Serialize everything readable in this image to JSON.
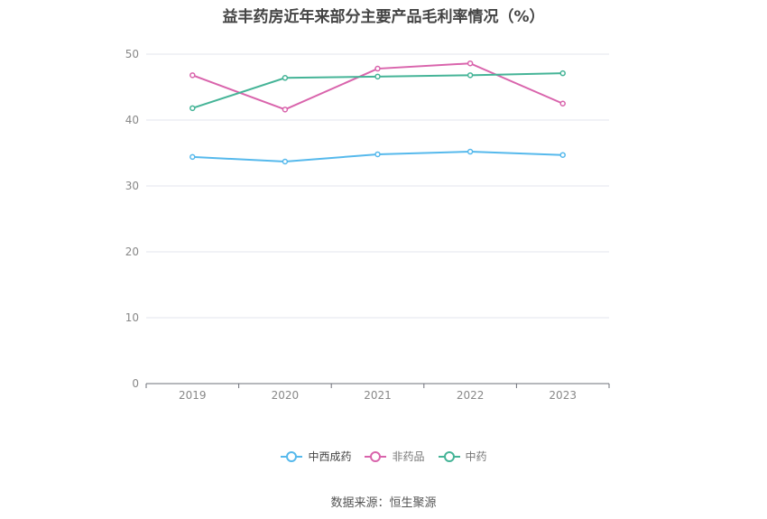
{
  "chart_data": {
    "type": "line",
    "title": "益丰药房近年来部分主要产品毛利率情况（%）",
    "categories": [
      "2019",
      "2020",
      "2021",
      "2022",
      "2023"
    ],
    "series": [
      {
        "name": "中西成药",
        "values": [
          34.4,
          33.7,
          34.8,
          35.2,
          34.7
        ],
        "color": "#56b9ec"
      },
      {
        "name": "非药品",
        "values": [
          46.8,
          41.6,
          47.8,
          48.6,
          42.5
        ],
        "color": "#d964ac"
      },
      {
        "name": "中药",
        "values": [
          41.8,
          46.4,
          46.6,
          46.8,
          47.1
        ],
        "color": "#45b497"
      }
    ],
    "ylim": [
      0,
      50
    ],
    "yticks": [
      0,
      10,
      20,
      30,
      40,
      50
    ],
    "grid": true,
    "legend_position": "bottom-center"
  },
  "source_note": "数据来源：恒生聚源"
}
